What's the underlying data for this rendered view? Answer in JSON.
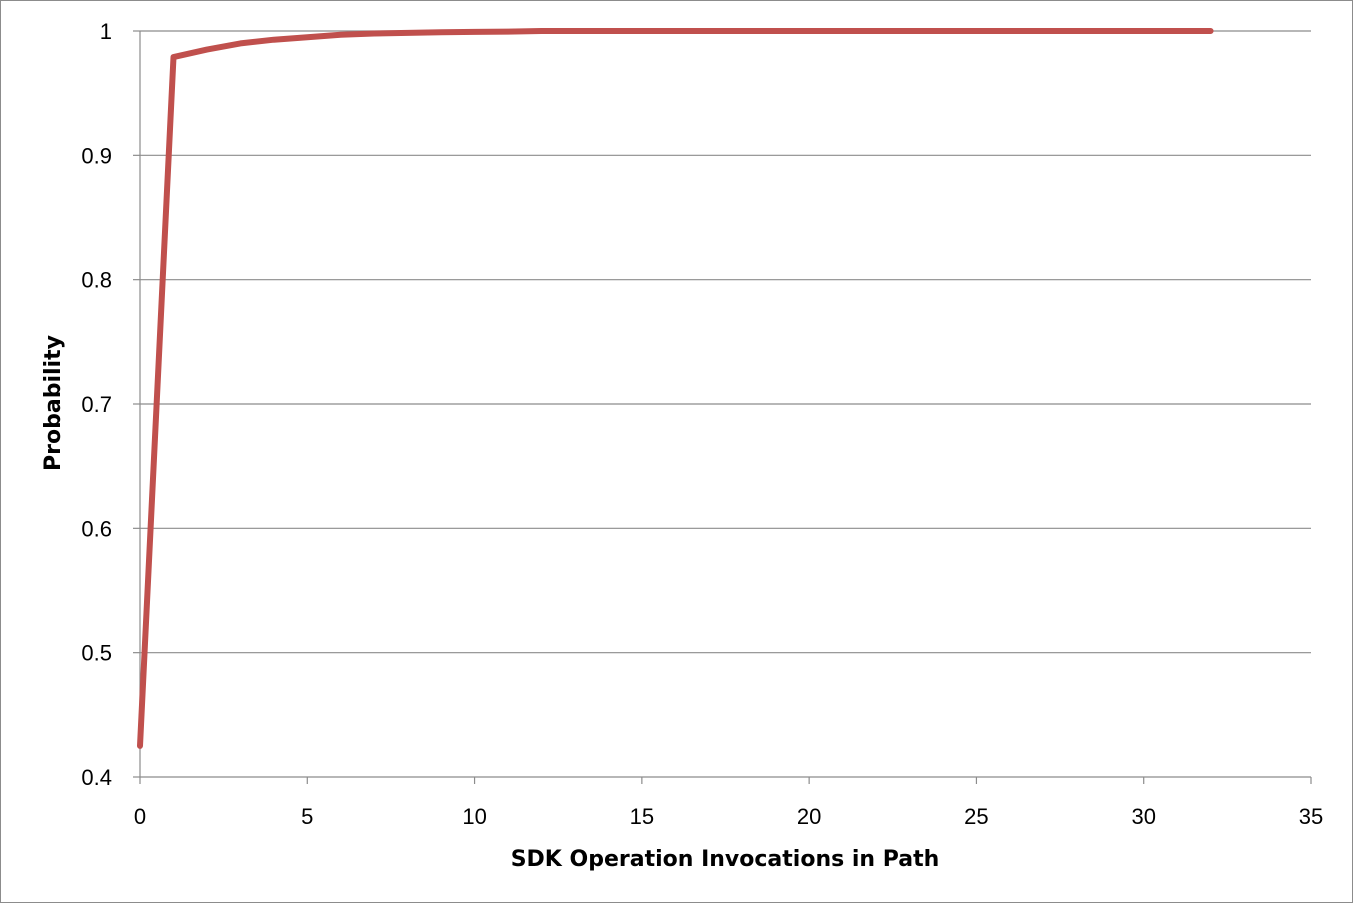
{
  "chart_data": {
    "type": "line",
    "xlabel": "SDK Operation Invocations in Path",
    "ylabel": "Probability",
    "xlim": [
      0,
      35
    ],
    "ylim": [
      0.4,
      1
    ],
    "x_ticks": [
      0,
      5,
      10,
      15,
      20,
      25,
      30,
      35
    ],
    "y_ticks": [
      0.4,
      0.5,
      0.6,
      0.7,
      0.8,
      0.9,
      1
    ],
    "x_tick_labels": [
      "0",
      "5",
      "10",
      "15",
      "20",
      "25",
      "30",
      "35"
    ],
    "y_tick_labels": [
      "0.4",
      "0.5",
      "0.6",
      "0.7",
      "0.8",
      "0.9",
      "1"
    ],
    "grid": {
      "horizontal": true,
      "vertical": false
    },
    "legend": "none",
    "series": [
      {
        "color": "#c0504d",
        "x": [
          0,
          1,
          2,
          3,
          4,
          5,
          6,
          7,
          8,
          9,
          10,
          11,
          12,
          13,
          14,
          15,
          16,
          17,
          18,
          19,
          20,
          21,
          22,
          23,
          24,
          25,
          26,
          27,
          28,
          29,
          30,
          31,
          32
        ],
        "y": [
          0.425,
          0.979,
          0.985,
          0.99,
          0.993,
          0.995,
          0.997,
          0.998,
          0.9985,
          0.999,
          0.9993,
          0.9995,
          1,
          1,
          1,
          1,
          1,
          1,
          1,
          1,
          1,
          1,
          1,
          1,
          1,
          1,
          1,
          1,
          1,
          1,
          1,
          1,
          1
        ]
      }
    ]
  }
}
